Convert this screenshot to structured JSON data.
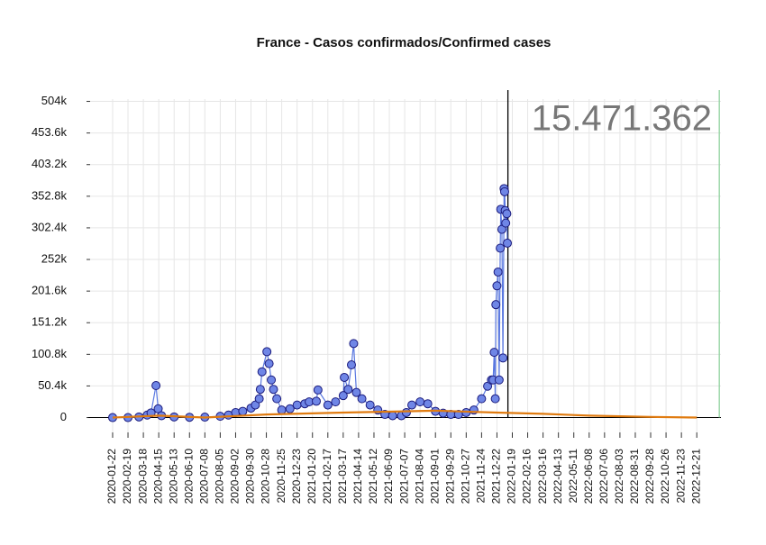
{
  "chart_data": {
    "type": "line",
    "title": "France - Casos confirmados/Confirmed cases",
    "annotation": "15.471.362",
    "xlim": [
      "2019-12-12",
      "2023-02-03"
    ],
    "xticks": [
      "2020-01-22",
      "2020-02-19",
      "2020-03-18",
      "2020-04-15",
      "2020-05-13",
      "2020-06-10",
      "2020-07-08",
      "2020-08-05",
      "2020-09-02",
      "2020-09-30",
      "2020-10-28",
      "2020-11-25",
      "2020-12-23",
      "2021-01-20",
      "2021-02-17",
      "2021-03-17",
      "2021-04-14",
      "2021-05-12",
      "2021-06-09",
      "2021-07-07",
      "2021-08-04",
      "2021-09-01",
      "2021-09-29",
      "2021-10-27",
      "2021-11-24",
      "2021-12-22",
      "2022-01-19",
      "2022-02-16",
      "2022-03-16",
      "2022-04-13",
      "2022-05-11",
      "2022-06-08",
      "2022-07-06",
      "2022-08-03",
      "2022-08-31",
      "2022-09-28",
      "2022-10-26",
      "2022-11-23",
      "2022-12-21"
    ],
    "ylim": [
      -38000,
      522000
    ],
    "yticks": [
      0,
      {
        "value": 50400,
        "label": "50.4k"
      },
      {
        "value": 100800,
        "label": "100.8k"
      },
      {
        "value": 151200,
        "label": "151.2k"
      },
      {
        "value": 201600,
        "label": "201.6k"
      },
      {
        "value": 252000,
        "label": "252k"
      },
      {
        "value": 302400,
        "label": "302.4k"
      },
      {
        "value": 352800,
        "label": "352.8k"
      },
      {
        "value": 403200,
        "label": "403.2k"
      },
      {
        "value": 453600,
        "label": "453.6k"
      },
      {
        "value": 504000,
        "label": "504k"
      }
    ],
    "grid": true,
    "zero_line": true,
    "vlines": [
      {
        "x": "2022-01-11",
        "color": "#000000"
      },
      {
        "x": "2023-01-31",
        "color": "#8fd19e"
      }
    ],
    "series": [
      {
        "color": "#5a78e0",
        "marker_color": "#6f86e6",
        "marker_edge": "#1b1b7d",
        "x": [
          "2020-01-22",
          "2020-02-19",
          "2020-03-10",
          "2020-03-25",
          "2020-04-01",
          "2020-04-10",
          "2020-04-14",
          "2020-04-20",
          "2020-05-13",
          "2020-06-10",
          "2020-07-08",
          "2020-08-05",
          "2020-08-20",
          "2020-09-02",
          "2020-09-15",
          "2020-09-30",
          "2020-10-08",
          "2020-10-15",
          "2020-10-17",
          "2020-10-20",
          "2020-10-29",
          "2020-11-02",
          "2020-11-06",
          "2020-11-10",
          "2020-11-16",
          "2020-11-25",
          "2020-12-10",
          "2020-12-23",
          "2021-01-06",
          "2021-01-14",
          "2021-01-27",
          "2021-01-30",
          "2021-02-17",
          "2021-03-03",
          "2021-03-17",
          "2021-03-19",
          "2021-03-26",
          "2021-04-01",
          "2021-04-05",
          "2021-04-10",
          "2021-04-20",
          "2021-05-05",
          "2021-05-19",
          "2021-06-01",
          "2021-06-15",
          "2021-07-01",
          "2021-07-10",
          "2021-07-20",
          "2021-08-04",
          "2021-08-18",
          "2021-09-01",
          "2021-09-15",
          "2021-09-29",
          "2021-10-13",
          "2021-10-27",
          "2021-11-10",
          "2021-11-24",
          "2021-12-05",
          "2021-12-12",
          "2021-12-15",
          "2021-12-17",
          "2021-12-19",
          "2021-12-20",
          "2021-12-22",
          "2021-12-24",
          "2021-12-26",
          "2021-12-28",
          "2021-12-29",
          "2021-12-31",
          "2022-01-02",
          "2022-01-04",
          "2022-01-05",
          "2022-01-06",
          "2022-01-07",
          "2022-01-09",
          "2022-01-10"
        ],
        "values": [
          0,
          0,
          1000,
          4000,
          7500,
          51000,
          14000,
          3000,
          1000,
          500,
          700,
          2000,
          4000,
          8000,
          10000,
          15000,
          20000,
          30000,
          45000,
          73000,
          105000,
          86000,
          60000,
          45000,
          30000,
          12000,
          14000,
          20000,
          22000,
          25000,
          26000,
          44000,
          20000,
          25000,
          35000,
          64000,
          45000,
          84000,
          118000,
          40000,
          30000,
          20000,
          12000,
          5000,
          3000,
          3000,
          8000,
          20000,
          25000,
          22000,
          10000,
          7000,
          5000,
          5000,
          8000,
          12000,
          30000,
          50000,
          60000,
          60000,
          104000,
          30000,
          180000,
          210000,
          232000,
          60000,
          270000,
          332000,
          300000,
          95000,
          365000,
          360000,
          330000,
          310000,
          325000,
          278000
        ]
      },
      {
        "color": "#e07b10",
        "x": [
          "2020-01-22",
          "2020-04-15",
          "2020-07-08",
          "2020-10-28",
          "2021-03-17",
          "2021-07-07",
          "2021-09-01",
          "2021-12-22",
          "2022-03-16",
          "2022-06-08",
          "2022-09-28",
          "2022-12-21"
        ],
        "values": [
          0,
          3000,
          0,
          5000,
          8000,
          10000,
          11000,
          8000,
          6000,
          3000,
          1000,
          0
        ]
      }
    ]
  }
}
